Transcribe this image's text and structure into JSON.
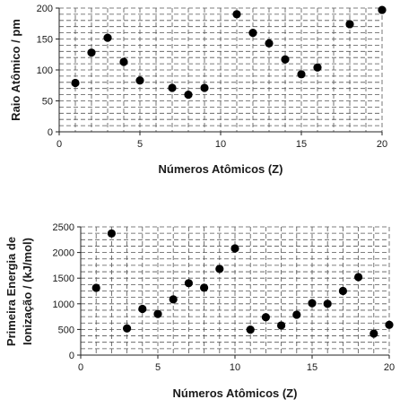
{
  "chart_data": [
    {
      "type": "scatter",
      "title": "",
      "xlabel": "Números Atômicos (Z)",
      "ylabel": "Raio Atômico / pm",
      "xlim": [
        0,
        20
      ],
      "ylim": [
        0,
        200
      ],
      "x_ticks": [
        0,
        5,
        10,
        15,
        20
      ],
      "y_ticks": [
        0,
        50,
        100,
        150,
        200
      ],
      "grid": "dashed",
      "marker_color": "#000000",
      "x": [
        1,
        2,
        3,
        4,
        5,
        7,
        8,
        9,
        11,
        12,
        13,
        14,
        15,
        16,
        18,
        20
      ],
      "y": [
        79,
        128,
        152,
        113,
        83,
        71,
        60,
        71,
        190,
        160,
        143,
        117,
        93,
        104,
        174,
        197
      ]
    },
    {
      "type": "scatter",
      "title": "",
      "xlabel": "Números Atômicos (Z)",
      "ylabel": [
        "Primeira Energia de",
        "Ionização / (kJ/mol)"
      ],
      "xlim": [
        0,
        20
      ],
      "ylim": [
        0,
        2500
      ],
      "x_ticks": [
        0,
        5,
        10,
        15,
        20
      ],
      "y_ticks": [
        0,
        500,
        1000,
        1500,
        2000,
        2500
      ],
      "grid": "dashed",
      "marker_color": "#000000",
      "x": [
        1,
        2,
        3,
        4,
        5,
        6,
        7,
        8,
        9,
        10,
        11,
        12,
        13,
        14,
        15,
        16,
        17,
        18,
        19,
        20
      ],
      "y": [
        1312,
        2372,
        520,
        900,
        801,
        1086,
        1402,
        1314,
        1681,
        2081,
        496,
        738,
        578,
        787,
        1012,
        1000,
        1251,
        1521,
        419,
        590
      ]
    }
  ]
}
